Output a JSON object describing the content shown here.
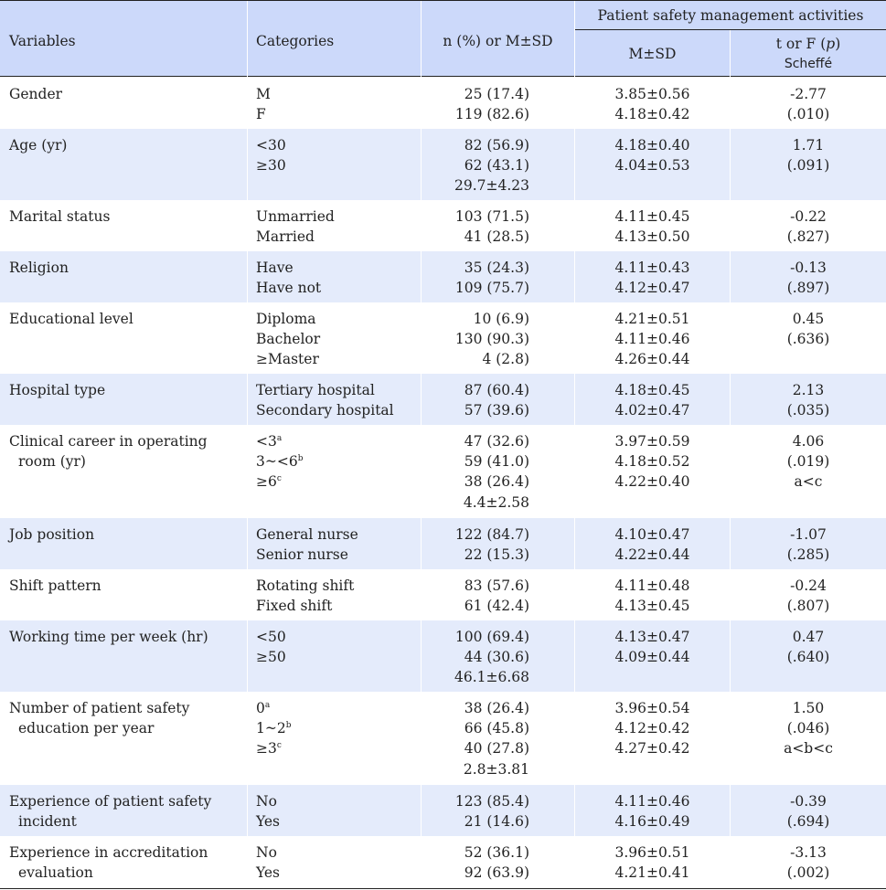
{
  "header": {
    "variables": "Variables",
    "categories": "Categories",
    "n_pct": "n (%) or M±SD",
    "group": "Patient safety management activities",
    "msd": "M±SD",
    "t_prefix": "t or F (",
    "t_p": "p",
    "t_suffix": ")",
    "scheffe": "Scheffé"
  },
  "rows": [
    {
      "var": [
        "Gender"
      ],
      "cats": [
        "M",
        "F"
      ],
      "n": [
        "25 (17.4)",
        "119 (82.6)"
      ],
      "m": [
        "3.85±0.56",
        "4.18±0.42"
      ],
      "t": [
        "-2.77",
        "(.010)"
      ]
    },
    {
      "var": [
        "Age (yr)"
      ],
      "cats": [
        "<30",
        "≥30"
      ],
      "n": [
        "82 (56.9)",
        "62 (43.1)",
        "29.7±4.23"
      ],
      "m": [
        "4.18±0.40",
        "4.04±0.53"
      ],
      "t": [
        "1.71",
        "(.091)"
      ]
    },
    {
      "var": [
        "Marital status"
      ],
      "cats": [
        "Unmarried",
        "Married"
      ],
      "n": [
        "103 (71.5)",
        "41 (28.5)"
      ],
      "m": [
        "4.11±0.45",
        "4.13±0.50"
      ],
      "t": [
        "-0.22",
        "(.827)"
      ]
    },
    {
      "var": [
        "Religion"
      ],
      "cats": [
        "Have",
        "Have not"
      ],
      "n": [
        "35 (24.3)",
        "109 (75.7)"
      ],
      "m": [
        "4.11±0.43",
        "4.12±0.47"
      ],
      "t": [
        "-0.13",
        "(.897)"
      ]
    },
    {
      "var": [
        "Educational level"
      ],
      "cats": [
        "Diploma",
        "Bachelor",
        "≥Master"
      ],
      "n": [
        "10 (6.9)",
        "130 (90.3)",
        "4 (2.8)"
      ],
      "m": [
        "4.21±0.51",
        "4.11±0.46",
        "4.26±0.44"
      ],
      "t": [
        "0.45",
        "(.636)"
      ]
    },
    {
      "var": [
        "Hospital type"
      ],
      "cats": [
        "Tertiary hospital",
        "Secondary hospital"
      ],
      "n": [
        "87 (60.4)",
        "57 (39.6)"
      ],
      "m": [
        "4.18±0.45",
        "4.02±0.47"
      ],
      "t": [
        "2.13",
        "(.035)"
      ]
    },
    {
      "var": [
        "Clinical career in operating",
        "room (yr)"
      ],
      "cats": [
        "<3",
        "3~<6",
        "≥6"
      ],
      "sups": [
        "a",
        "b",
        "c"
      ],
      "n": [
        "47 (32.6)",
        "59 (41.0)",
        "38 (26.4)",
        "4.4±2.58"
      ],
      "m": [
        "3.97±0.59",
        "4.18±0.52",
        "4.22±0.40"
      ],
      "t": [
        "4.06",
        "(.019)",
        "a<c"
      ]
    },
    {
      "var": [
        "Job position"
      ],
      "cats": [
        "General nurse",
        "Senior nurse"
      ],
      "n": [
        "122 (84.7)",
        "22 (15.3)"
      ],
      "m": [
        "4.10±0.47",
        "4.22±0.44"
      ],
      "t": [
        "-1.07",
        "(.285)"
      ]
    },
    {
      "var": [
        "Shift pattern"
      ],
      "cats": [
        "Rotating shift",
        "Fixed shift"
      ],
      "n": [
        "83 (57.6)",
        "61 (42.4)"
      ],
      "m": [
        "4.11±0.48",
        "4.13±0.45"
      ],
      "t": [
        "-0.24",
        "(.807)"
      ]
    },
    {
      "var": [
        "Working time per week (hr)"
      ],
      "cats": [
        "<50",
        "≥50"
      ],
      "n": [
        "100 (69.4)",
        "44 (30.6)",
        "46.1±6.68"
      ],
      "m": [
        "4.13±0.47",
        "4.09±0.44"
      ],
      "t": [
        "0.47",
        "(.640)"
      ]
    },
    {
      "var": [
        "Number of patient safety",
        "education per year"
      ],
      "cats": [
        "0",
        "1~2",
        "≥3"
      ],
      "sups": [
        "a",
        "b",
        "c"
      ],
      "n": [
        "38 (26.4)",
        "66 (45.8)",
        "40 (27.8)",
        "2.8±3.81"
      ],
      "m": [
        "3.96±0.54",
        "4.12±0.42",
        "4.27±0.42"
      ],
      "t": [
        "1.50",
        "(.046)",
        "a<b<c"
      ]
    },
    {
      "var": [
        "Experience of patient safety",
        "incident"
      ],
      "cats": [
        "No",
        "Yes"
      ],
      "n": [
        "123 (85.4)",
        "21 (14.6)"
      ],
      "m": [
        "4.11±0.46",
        "4.16±0.49"
      ],
      "t": [
        "-0.39",
        "(.694)"
      ]
    },
    {
      "var": [
        "Experience in accreditation",
        "evaluation"
      ],
      "cats": [
        "No",
        "Yes"
      ],
      "n": [
        "52 (36.1)",
        "92 (63.9)"
      ],
      "m": [
        "3.96±0.51",
        "4.21±0.41"
      ],
      "t": [
        "-3.13",
        "(.002)"
      ]
    }
  ]
}
